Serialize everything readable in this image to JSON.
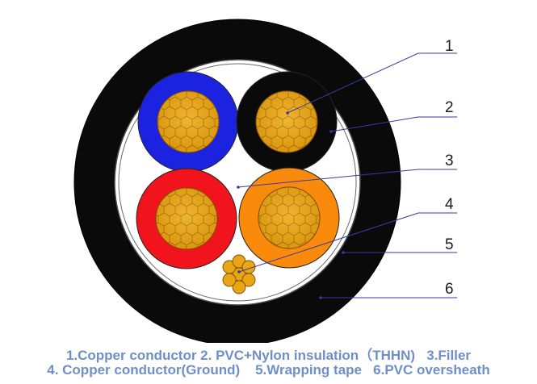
{
  "callouts": [
    {
      "number": "1"
    },
    {
      "number": "2"
    },
    {
      "number": "3"
    },
    {
      "number": "4"
    },
    {
      "number": "5"
    },
    {
      "number": "6"
    }
  ],
  "caption": {
    "line1": "1.Copper conductor 2. PVC+Nylon insulation（THHN)   3.Filler",
    "line2": "4. Copper conductor(Ground)    5.Wrapping tape   6.PVC oversheath"
  },
  "colors": {
    "oversheath": "#0a0a0a",
    "filler": "#ffffff",
    "insulation_blue": "#1b22e0",
    "insulation_black": "#0a0a0a",
    "insulation_red": "#f2141c",
    "insulation_orange": "#f98a0c",
    "copper": "#e8a616",
    "leader_line": "#3a3aa0",
    "caption_text": "#6e8fc9"
  }
}
